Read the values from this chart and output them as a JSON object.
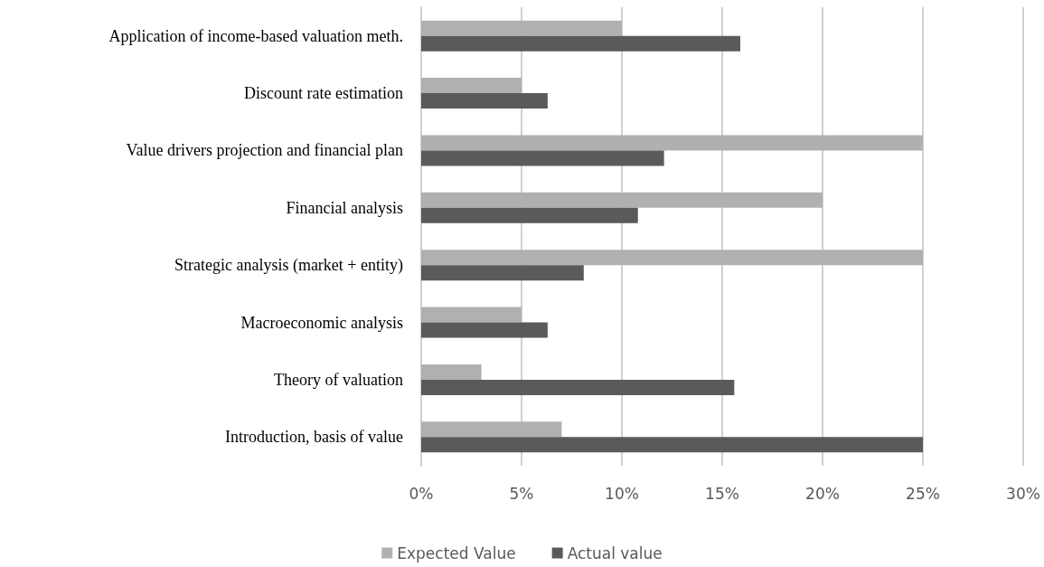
{
  "chart_data": {
    "type": "bar",
    "orientation": "horizontal",
    "categories": [
      "Application of income-based valuation meth.",
      "Discount rate estimation",
      "Value drivers projection and financial plan",
      "Financial analysis",
      "Strategic analysis (market + entity)",
      "Macroeconomic analysis",
      "Theory of valuation",
      "Introduction, basis of value"
    ],
    "series": [
      {
        "name": "Expected Value",
        "color": "#b0b0b0",
        "values": [
          10,
          5,
          25,
          20,
          25,
          5,
          3,
          7
        ]
      },
      {
        "name": "Actual value",
        "color": "#5a5a5a",
        "values": [
          15.9,
          6.3,
          12.1,
          10.8,
          8.1,
          6.3,
          15.6,
          25
        ]
      }
    ],
    "xlim": [
      0,
      30
    ],
    "xticks": [
      {
        "value": 0,
        "label": "0%"
      },
      {
        "value": 5,
        "label": "5%"
      },
      {
        "value": 10,
        "label": "10%"
      },
      {
        "value": 15,
        "label": "15%"
      },
      {
        "value": 20,
        "label": "20%"
      },
      {
        "value": 25,
        "label": "25%"
      },
      {
        "value": 30,
        "label": "30%"
      }
    ],
    "grid": "x",
    "legend": "bottom"
  }
}
